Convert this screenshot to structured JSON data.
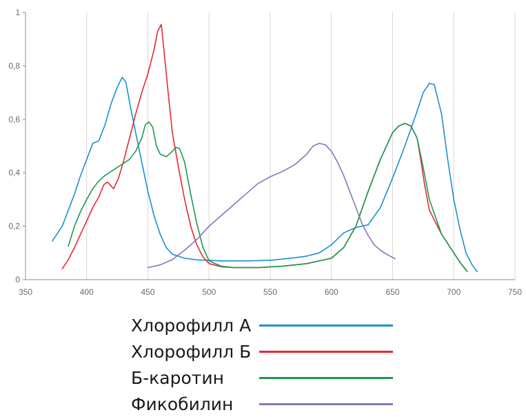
{
  "chart_data": {
    "type": "line",
    "xlim": [
      350,
      750
    ],
    "ylim": [
      0,
      1
    ],
    "x_ticks": [
      "350",
      "400",
      "450",
      "500",
      "550",
      "600",
      "650",
      "700",
      "750"
    ],
    "y_ticks": [
      "0",
      "0,2",
      "0,4",
      "0,6",
      "0,8",
      "1"
    ],
    "grid": "vertical",
    "legend_position": "bottom",
    "series": [
      {
        "name": "Хлорофилл А",
        "color": "#1a8fd0",
        "points": [
          [
            372,
            0.145
          ],
          [
            380,
            0.2
          ],
          [
            385,
            0.26
          ],
          [
            390,
            0.32
          ],
          [
            395,
            0.39
          ],
          [
            400,
            0.45
          ],
          [
            405,
            0.51
          ],
          [
            410,
            0.52
          ],
          [
            415,
            0.58
          ],
          [
            420,
            0.66
          ],
          [
            425,
            0.72
          ],
          [
            429,
            0.757
          ],
          [
            432,
            0.74
          ],
          [
            436,
            0.64
          ],
          [
            440,
            0.55
          ],
          [
            445,
            0.44
          ],
          [
            450,
            0.33
          ],
          [
            455,
            0.24
          ],
          [
            460,
            0.17
          ],
          [
            465,
            0.12
          ],
          [
            470,
            0.095
          ],
          [
            480,
            0.08
          ],
          [
            490,
            0.074
          ],
          [
            500,
            0.072
          ],
          [
            510,
            0.07
          ],
          [
            530,
            0.07
          ],
          [
            550,
            0.072
          ],
          [
            570,
            0.082
          ],
          [
            580,
            0.088
          ],
          [
            590,
            0.1
          ],
          [
            600,
            0.13
          ],
          [
            610,
            0.175
          ],
          [
            620,
            0.195
          ],
          [
            630,
            0.205
          ],
          [
            640,
            0.27
          ],
          [
            650,
            0.38
          ],
          [
            660,
            0.5
          ],
          [
            670,
            0.63
          ],
          [
            675,
            0.7
          ],
          [
            680,
            0.735
          ],
          [
            684,
            0.73
          ],
          [
            690,
            0.62
          ],
          [
            695,
            0.45
          ],
          [
            700,
            0.3
          ],
          [
            705,
            0.19
          ],
          [
            710,
            0.1
          ],
          [
            715,
            0.055
          ],
          [
            719,
            0.03
          ]
        ]
      },
      {
        "name": "Хлорофилл Б",
        "color": "#e6282d",
        "points": [
          [
            380,
            0.04
          ],
          [
            385,
            0.075
          ],
          [
            390,
            0.12
          ],
          [
            395,
            0.17
          ],
          [
            400,
            0.22
          ],
          [
            405,
            0.27
          ],
          [
            410,
            0.31
          ],
          [
            414,
            0.355
          ],
          [
            417,
            0.365
          ],
          [
            420,
            0.35
          ],
          [
            422,
            0.34
          ],
          [
            426,
            0.38
          ],
          [
            430,
            0.44
          ],
          [
            435,
            0.53
          ],
          [
            440,
            0.62
          ],
          [
            445,
            0.7
          ],
          [
            450,
            0.77
          ],
          [
            455,
            0.86
          ],
          [
            458,
            0.93
          ],
          [
            461,
            0.955
          ],
          [
            464,
            0.82
          ],
          [
            467,
            0.68
          ],
          [
            470,
            0.55
          ],
          [
            475,
            0.42
          ],
          [
            480,
            0.3
          ],
          [
            485,
            0.2
          ],
          [
            490,
            0.13
          ],
          [
            495,
            0.085
          ],
          [
            500,
            0.06
          ],
          [
            510,
            0.048
          ],
          [
            520,
            0.045
          ],
          [
            540,
            0.045
          ],
          [
            560,
            0.05
          ],
          [
            580,
            0.06
          ],
          [
            600,
            0.08
          ],
          [
            610,
            0.12
          ],
          [
            620,
            0.2
          ],
          [
            630,
            0.33
          ],
          [
            640,
            0.45
          ],
          [
            650,
            0.55
          ],
          [
            655,
            0.575
          ],
          [
            660,
            0.585
          ],
          [
            665,
            0.575
          ],
          [
            670,
            0.53
          ],
          [
            673,
            0.45
          ],
          [
            676,
            0.36
          ],
          [
            680,
            0.26
          ],
          [
            690,
            0.17
          ],
          [
            700,
            0.1
          ],
          [
            705,
            0.065
          ],
          [
            711,
            0.03
          ]
        ]
      },
      {
        "name": "Б-каротин",
        "color": "#1a9a4e",
        "points": [
          [
            385,
            0.125
          ],
          [
            390,
            0.2
          ],
          [
            395,
            0.255
          ],
          [
            400,
            0.3
          ],
          [
            405,
            0.34
          ],
          [
            410,
            0.37
          ],
          [
            415,
            0.39
          ],
          [
            420,
            0.405
          ],
          [
            425,
            0.42
          ],
          [
            430,
            0.435
          ],
          [
            435,
            0.45
          ],
          [
            440,
            0.48
          ],
          [
            445,
            0.53
          ],
          [
            448,
            0.58
          ],
          [
            451,
            0.59
          ],
          [
            454,
            0.57
          ],
          [
            457,
            0.5
          ],
          [
            460,
            0.47
          ],
          [
            465,
            0.46
          ],
          [
            470,
            0.48
          ],
          [
            473,
            0.495
          ],
          [
            476,
            0.49
          ],
          [
            480,
            0.44
          ],
          [
            485,
            0.32
          ],
          [
            490,
            0.21
          ],
          [
            495,
            0.12
          ],
          [
            500,
            0.07
          ],
          [
            510,
            0.05
          ],
          [
            520,
            0.045
          ],
          [
            540,
            0.045
          ],
          [
            560,
            0.05
          ],
          [
            580,
            0.06
          ],
          [
            600,
            0.08
          ],
          [
            610,
            0.12
          ],
          [
            620,
            0.2
          ],
          [
            630,
            0.33
          ],
          [
            640,
            0.45
          ],
          [
            650,
            0.55
          ],
          [
            655,
            0.575
          ],
          [
            660,
            0.585
          ],
          [
            665,
            0.575
          ],
          [
            670,
            0.53
          ],
          [
            675,
            0.42
          ],
          [
            680,
            0.3
          ],
          [
            690,
            0.17
          ],
          [
            700,
            0.1
          ],
          [
            705,
            0.065
          ],
          [
            711,
            0.03
          ]
        ]
      },
      {
        "name": "Фикобилин",
        "color": "#8377b8",
        "points": [
          [
            450,
            0.045
          ],
          [
            460,
            0.055
          ],
          [
            470,
            0.075
          ],
          [
            480,
            0.11
          ],
          [
            490,
            0.15
          ],
          [
            500,
            0.2
          ],
          [
            510,
            0.24
          ],
          [
            520,
            0.28
          ],
          [
            530,
            0.32
          ],
          [
            540,
            0.36
          ],
          [
            550,
            0.385
          ],
          [
            560,
            0.405
          ],
          [
            570,
            0.43
          ],
          [
            580,
            0.47
          ],
          [
            585,
            0.5
          ],
          [
            590,
            0.51
          ],
          [
            595,
            0.505
          ],
          [
            600,
            0.48
          ],
          [
            605,
            0.44
          ],
          [
            610,
            0.39
          ],
          [
            615,
            0.33
          ],
          [
            620,
            0.27
          ],
          [
            625,
            0.21
          ],
          [
            630,
            0.165
          ],
          [
            635,
            0.13
          ],
          [
            640,
            0.11
          ],
          [
            645,
            0.095
          ],
          [
            652,
            0.078
          ]
        ]
      }
    ]
  }
}
